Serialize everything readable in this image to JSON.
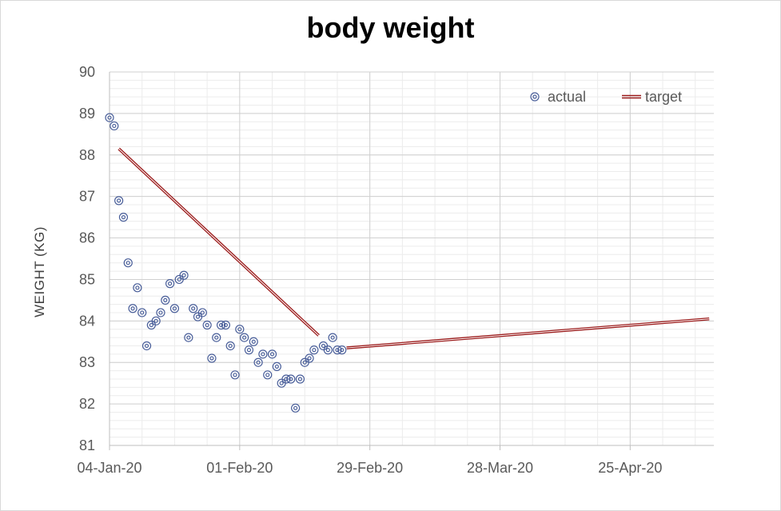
{
  "chart_data": {
    "type": "scatter",
    "title": "body weight",
    "xlabel": "",
    "ylabel": "WEIGHT (KG)",
    "x_axis": {
      "type": "date",
      "min": "2020-01-04",
      "max": "2020-05-13",
      "tick_labels": [
        "04-Jan-20",
        "01-Feb-20",
        "29-Feb-20",
        "28-Mar-20",
        "25-Apr-20"
      ],
      "tick_dates": [
        "2020-01-04",
        "2020-02-01",
        "2020-02-29",
        "2020-03-28",
        "2020-04-25"
      ]
    },
    "y_axis": {
      "min": 81,
      "max": 90,
      "major_step": 1,
      "minor_step": 0.2
    },
    "grid": true,
    "legend": "top-right",
    "colors": {
      "actual": "#4a5f9a",
      "target": "#9b1b1b"
    },
    "series": [
      {
        "name": "actual",
        "kind": "markers",
        "points": [
          [
            "2020-01-04",
            88.9
          ],
          [
            "2020-01-05",
            88.7
          ],
          [
            "2020-01-06",
            86.9
          ],
          [
            "2020-01-07",
            86.5
          ],
          [
            "2020-01-08",
            85.4
          ],
          [
            "2020-01-09",
            84.3
          ],
          [
            "2020-01-10",
            84.8
          ],
          [
            "2020-01-11",
            84.2
          ],
          [
            "2020-01-12",
            83.4
          ],
          [
            "2020-01-13",
            83.9
          ],
          [
            "2020-01-14",
            84.0
          ],
          [
            "2020-01-15",
            84.2
          ],
          [
            "2020-01-16",
            84.5
          ],
          [
            "2020-01-17",
            84.9
          ],
          [
            "2020-01-18",
            84.3
          ],
          [
            "2020-01-19",
            85.0
          ],
          [
            "2020-01-20",
            85.1
          ],
          [
            "2020-01-21",
            83.6
          ],
          [
            "2020-01-22",
            84.3
          ],
          [
            "2020-01-23",
            84.1
          ],
          [
            "2020-01-24",
            84.2
          ],
          [
            "2020-01-25",
            83.9
          ],
          [
            "2020-01-26",
            83.1
          ],
          [
            "2020-01-27",
            83.6
          ],
          [
            "2020-01-28",
            83.9
          ],
          [
            "2020-01-29",
            83.9
          ],
          [
            "2020-01-30",
            83.4
          ],
          [
            "2020-01-31",
            82.7
          ],
          [
            "2020-02-01",
            83.8
          ],
          [
            "2020-02-02",
            83.6
          ],
          [
            "2020-02-03",
            83.3
          ],
          [
            "2020-02-04",
            83.5
          ],
          [
            "2020-02-05",
            83.0
          ],
          [
            "2020-02-06",
            83.2
          ],
          [
            "2020-02-07",
            82.7
          ],
          [
            "2020-02-08",
            83.2
          ],
          [
            "2020-02-09",
            82.9
          ],
          [
            "2020-02-10",
            82.5
          ],
          [
            "2020-02-11",
            82.6
          ],
          [
            "2020-02-12",
            82.6
          ],
          [
            "2020-02-13",
            81.9
          ],
          [
            "2020-02-14",
            82.6
          ],
          [
            "2020-02-15",
            83.0
          ],
          [
            "2020-02-16",
            83.1
          ],
          [
            "2020-02-17",
            83.3
          ],
          [
            "2020-02-19",
            83.4
          ],
          [
            "2020-02-20",
            83.3
          ],
          [
            "2020-02-21",
            83.6
          ],
          [
            "2020-02-22",
            83.3
          ],
          [
            "2020-02-23",
            83.3
          ]
        ]
      },
      {
        "name": "target",
        "kind": "line",
        "segments": [
          [
            [
              "2020-01-06",
              88.15
            ],
            [
              "2020-02-18",
              83.65
            ]
          ],
          [
            [
              "2020-02-24",
              83.35
            ],
            [
              "2020-05-12",
              84.05
            ]
          ]
        ]
      }
    ]
  }
}
